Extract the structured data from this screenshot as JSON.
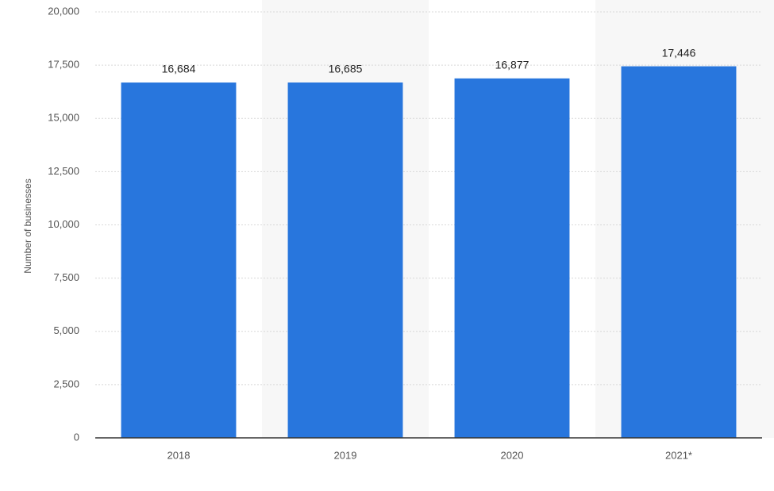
{
  "chart_data": {
    "type": "bar",
    "y_label": "Number of businesses",
    "categories": [
      "2018",
      "2019",
      "2020",
      "2021*"
    ],
    "values": [
      16684,
      16685,
      16877,
      17446
    ],
    "value_labels": [
      "16,684",
      "16,685",
      "16,877",
      "17,446"
    ],
    "color": "#2876dd",
    "ylim": [
      0,
      20000
    ],
    "yticks": [
      0,
      {
        "value": 2500,
        "label": "2,500"
      },
      {
        "value": 5000,
        "label": "5,000"
      },
      {
        "value": 7500,
        "label": "7,500"
      },
      {
        "value": 10000,
        "label": "10,000"
      },
      {
        "value": 12500,
        "label": "12,500"
      },
      {
        "value": 15000,
        "label": "15,000"
      },
      {
        "value": 17500,
        "label": "17,500"
      },
      {
        "value": 20000,
        "label": "20,000"
      }
    ],
    "grid": true
  }
}
